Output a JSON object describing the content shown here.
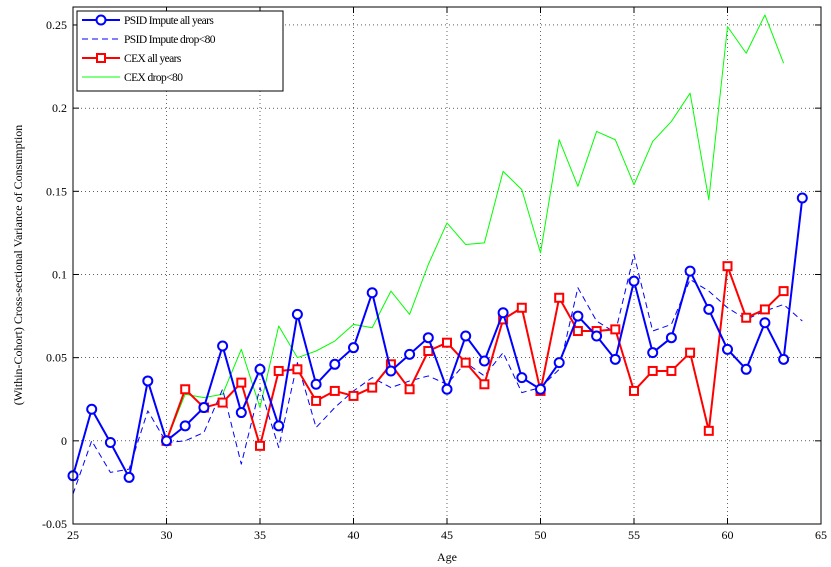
{
  "chart_data": {
    "type": "line",
    "title": "",
    "xlabel": "Age",
    "ylabel": "(Within-Cohort) Cross-sectional Variance of Consumption",
    "xlim": [
      25,
      65
    ],
    "ylim": [
      -0.05,
      0.26
    ],
    "xticks": [
      25,
      30,
      35,
      40,
      45,
      50,
      55,
      60,
      65
    ],
    "yticks": [
      -0.05,
      0,
      0.05,
      0.1,
      0.15,
      0.2,
      0.25
    ],
    "xtick_labels": [
      "25",
      "30",
      "35",
      "40",
      "45",
      "50",
      "55",
      "60",
      "65"
    ],
    "ytick_labels": [
      "-0.05",
      "0",
      "0.05",
      "0.1",
      "0.15",
      "0.2",
      "0.25"
    ],
    "grid": true,
    "legend_position": "top-left",
    "series": [
      {
        "name": "PSID Impute all years",
        "color": "#0000ff",
        "line": "solid",
        "marker": "circle",
        "x": [
          25,
          26,
          27,
          28,
          29,
          30,
          31,
          32,
          33,
          34,
          35,
          36,
          37,
          38,
          39,
          40,
          41,
          42,
          43,
          44,
          45,
          46,
          47,
          48,
          49,
          50,
          51,
          52,
          53,
          54,
          55,
          56,
          57,
          58,
          59,
          60,
          61,
          62,
          63,
          64
        ],
        "y": [
          -0.021,
          0.019,
          -0.001,
          -0.022,
          0.036,
          0.0,
          0.009,
          0.02,
          0.057,
          0.017,
          0.043,
          0.009,
          0.076,
          0.034,
          0.046,
          0.056,
          0.089,
          0.042,
          0.052,
          0.062,
          0.031,
          0.063,
          0.048,
          0.077,
          0.038,
          0.031,
          0.047,
          0.075,
          0.063,
          0.049,
          0.096,
          0.053,
          0.062,
          0.102,
          0.079,
          0.055,
          0.043,
          0.071,
          0.049,
          0.146
        ]
      },
      {
        "name": "PSID Impute drop<80",
        "color": "#0000ff",
        "line": "dashed",
        "marker": "none",
        "x": [
          25,
          26,
          27,
          28,
          29,
          30,
          31,
          32,
          33,
          34,
          35,
          36,
          37,
          38,
          39,
          40,
          41,
          42,
          43,
          44,
          45,
          46,
          47,
          48,
          49,
          50,
          51,
          52,
          53,
          54,
          55,
          56,
          57,
          58,
          59,
          60,
          61,
          62,
          63,
          64
        ],
        "y": [
          -0.032,
          0.0,
          -0.019,
          -0.017,
          0.018,
          -0.001,
          0.0,
          0.005,
          0.031,
          -0.014,
          0.032,
          -0.004,
          0.047,
          0.008,
          0.02,
          0.03,
          0.038,
          0.032,
          0.036,
          0.039,
          0.034,
          0.047,
          0.039,
          0.053,
          0.029,
          0.032,
          0.043,
          0.092,
          0.072,
          0.065,
          0.112,
          0.066,
          0.07,
          0.097,
          0.09,
          0.08,
          0.073,
          0.078,
          0.082,
          0.072
        ]
      },
      {
        "name": "CEX all years",
        "color": "#ff0000",
        "line": "solid",
        "marker": "square",
        "x": [
          30,
          31,
          32,
          33,
          34,
          35,
          36,
          37,
          38,
          39,
          40,
          41,
          42,
          43,
          44,
          45,
          46,
          47,
          48,
          49,
          50,
          51,
          52,
          53,
          54,
          55,
          56,
          57,
          58,
          59,
          60,
          61,
          62,
          63
        ],
        "y": [
          0.0,
          0.031,
          0.02,
          0.023,
          0.035,
          -0.003,
          0.042,
          0.043,
          0.024,
          0.03,
          0.027,
          0.032,
          0.046,
          0.031,
          0.054,
          0.059,
          0.047,
          0.034,
          0.073,
          0.08,
          0.03,
          0.086,
          0.066,
          0.066,
          0.067,
          0.03,
          0.042,
          0.042,
          0.053,
          0.006,
          0.105,
          0.074,
          0.079,
          0.09
        ]
      },
      {
        "name": "CEX drop<80",
        "color": "#00ff00",
        "line": "solid",
        "marker": "none",
        "x": [
          30,
          31,
          32,
          33,
          34,
          35,
          36,
          37,
          38,
          39,
          40,
          41,
          42,
          43,
          44,
          45,
          46,
          47,
          48,
          49,
          50,
          51,
          52,
          53,
          54,
          55,
          56,
          57,
          58,
          59,
          60,
          61,
          62,
          63
        ],
        "y": [
          0.0,
          0.028,
          0.026,
          0.028,
          0.055,
          0.02,
          0.069,
          0.05,
          0.054,
          0.06,
          0.07,
          0.068,
          0.09,
          0.076,
          0.106,
          0.131,
          0.118,
          0.119,
          0.162,
          0.151,
          0.113,
          0.181,
          0.153,
          0.186,
          0.181,
          0.154,
          0.18,
          0.192,
          0.209,
          0.145,
          0.249,
          0.233,
          0.256,
          0.227
        ]
      }
    ]
  }
}
